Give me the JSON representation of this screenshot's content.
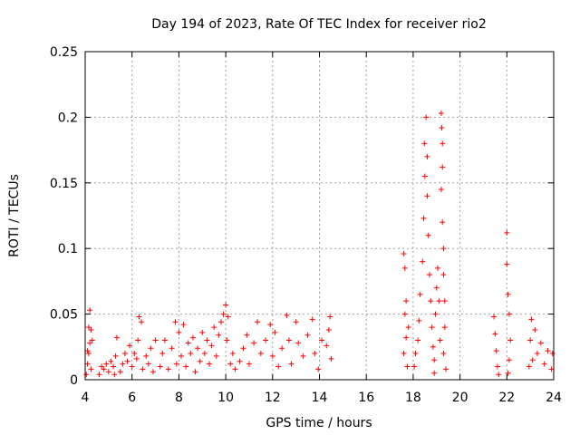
{
  "chart_data": {
    "type": "scatter",
    "title": "Day 194 of 2023, Rate Of TEC Index for receiver rio2",
    "xlabel": "GPS time / hours",
    "ylabel": "ROTI / TECUs",
    "xlim": [
      4,
      24
    ],
    "ylim": [
      0,
      0.25
    ],
    "grid": true,
    "marker": "+",
    "color": "#ff0000",
    "x_ticks": [
      "4",
      "6",
      "8",
      "10",
      "12",
      "14",
      "16",
      "18",
      "20",
      "22",
      "24"
    ],
    "y_ticks": [
      "0",
      "0.05",
      "0.1",
      "0.15",
      "0.2",
      "0.25"
    ],
    "series": [
      {
        "points": [
          [
            4.05,
            0.004
          ],
          [
            4.1,
            0.012
          ],
          [
            4.15,
            0.02
          ],
          [
            4.2,
            0.028
          ],
          [
            4.25,
            0.038
          ],
          [
            4.2,
            0.053
          ],
          [
            4.3,
            0.03
          ],
          [
            4.1,
            0.022
          ],
          [
            4.25,
            0.008
          ],
          [
            4.15,
            0.04
          ],
          [
            4.6,
            0.004
          ],
          [
            4.7,
            0.01
          ],
          [
            4.8,
            0.008
          ],
          [
            4.9,
            0.012
          ],
          [
            5.0,
            0.006
          ],
          [
            5.1,
            0.014
          ],
          [
            5.2,
            0.01
          ],
          [
            5.3,
            0.018
          ],
          [
            5.35,
            0.032
          ],
          [
            5.25,
            0.004
          ],
          [
            5.5,
            0.006
          ],
          [
            5.6,
            0.012
          ],
          [
            5.7,
            0.02
          ],
          [
            5.8,
            0.014
          ],
          [
            5.9,
            0.026
          ],
          [
            6.0,
            0.01
          ],
          [
            6.1,
            0.02
          ],
          [
            6.2,
            0.016
          ],
          [
            6.3,
            0.048
          ],
          [
            6.25,
            0.03
          ],
          [
            6.4,
            0.044
          ],
          [
            6.45,
            0.008
          ],
          [
            6.6,
            0.018
          ],
          [
            6.7,
            0.012
          ],
          [
            6.8,
            0.024
          ],
          [
            6.9,
            0.006
          ],
          [
            7.0,
            0.03
          ],
          [
            7.2,
            0.01
          ],
          [
            7.3,
            0.02
          ],
          [
            7.4,
            0.03
          ],
          [
            7.55,
            0.008
          ],
          [
            7.7,
            0.024
          ],
          [
            7.85,
            0.044
          ],
          [
            7.9,
            0.012
          ],
          [
            8.0,
            0.036
          ],
          [
            8.1,
            0.018
          ],
          [
            8.2,
            0.042
          ],
          [
            8.3,
            0.01
          ],
          [
            8.4,
            0.028
          ],
          [
            8.5,
            0.02
          ],
          [
            8.6,
            0.032
          ],
          [
            8.7,
            0.006
          ],
          [
            8.8,
            0.024
          ],
          [
            8.9,
            0.014
          ],
          [
            9.0,
            0.036
          ],
          [
            9.1,
            0.02
          ],
          [
            9.2,
            0.03
          ],
          [
            9.3,
            0.012
          ],
          [
            9.4,
            0.026
          ],
          [
            9.5,
            0.04
          ],
          [
            9.6,
            0.018
          ],
          [
            9.7,
            0.034
          ],
          [
            9.8,
            0.044
          ],
          [
            9.9,
            0.05
          ],
          [
            10.0,
            0.057
          ],
          [
            10.1,
            0.048
          ],
          [
            10.05,
            0.03
          ],
          [
            10.2,
            0.012
          ],
          [
            10.3,
            0.02
          ],
          [
            10.4,
            0.008
          ],
          [
            10.6,
            0.014
          ],
          [
            10.75,
            0.024
          ],
          [
            10.9,
            0.034
          ],
          [
            11.0,
            0.012
          ],
          [
            11.2,
            0.028
          ],
          [
            11.35,
            0.044
          ],
          [
            11.5,
            0.02
          ],
          [
            11.7,
            0.03
          ],
          [
            11.9,
            0.042
          ],
          [
            12.0,
            0.018
          ],
          [
            12.1,
            0.036
          ],
          [
            12.25,
            0.01
          ],
          [
            12.4,
            0.024
          ],
          [
            12.6,
            0.049
          ],
          [
            12.7,
            0.03
          ],
          [
            12.8,
            0.012
          ],
          [
            13.0,
            0.044
          ],
          [
            13.1,
            0.028
          ],
          [
            13.3,
            0.018
          ],
          [
            13.5,
            0.034
          ],
          [
            13.7,
            0.046
          ],
          [
            13.8,
            0.02
          ],
          [
            13.95,
            0.008
          ],
          [
            14.1,
            0.03
          ],
          [
            14.3,
            0.026
          ],
          [
            14.45,
            0.048
          ],
          [
            14.5,
            0.016
          ],
          [
            14.4,
            0.038
          ],
          [
            17.6,
            0.096
          ],
          [
            17.65,
            0.085
          ],
          [
            17.7,
            0.06
          ],
          [
            17.65,
            0.05
          ],
          [
            17.7,
            0.032
          ],
          [
            17.6,
            0.02
          ],
          [
            17.75,
            0.01
          ],
          [
            17.8,
            0.04
          ],
          [
            18.05,
            0.01
          ],
          [
            18.1,
            0.02
          ],
          [
            18.2,
            0.03
          ],
          [
            18.25,
            0.045
          ],
          [
            18.3,
            0.065
          ],
          [
            18.4,
            0.09
          ],
          [
            18.45,
            0.123
          ],
          [
            18.5,
            0.155
          ],
          [
            18.48,
            0.18
          ],
          [
            18.55,
            0.2
          ],
          [
            18.6,
            0.17
          ],
          [
            18.6,
            0.14
          ],
          [
            18.65,
            0.11
          ],
          [
            18.7,
            0.08
          ],
          [
            18.75,
            0.06
          ],
          [
            18.8,
            0.04
          ],
          [
            18.85,
            0.025
          ],
          [
            18.9,
            0.015
          ],
          [
            18.95,
            0.05
          ],
          [
            19.0,
            0.07
          ],
          [
            19.05,
            0.085
          ],
          [
            19.1,
            0.06
          ],
          [
            19.15,
            0.03
          ],
          [
            19.2,
            0.203
          ],
          [
            19.22,
            0.192
          ],
          [
            19.25,
            0.18
          ],
          [
            19.25,
            0.162
          ],
          [
            19.2,
            0.145
          ],
          [
            19.25,
            0.12
          ],
          [
            19.3,
            0.1
          ],
          [
            19.3,
            0.08
          ],
          [
            19.35,
            0.06
          ],
          [
            19.35,
            0.04
          ],
          [
            19.3,
            0.02
          ],
          [
            19.4,
            0.008
          ],
          [
            18.9,
            0.005
          ],
          [
            21.45,
            0.048
          ],
          [
            21.5,
            0.035
          ],
          [
            21.55,
            0.022
          ],
          [
            21.6,
            0.01
          ],
          [
            21.65,
            0.004
          ],
          [
            22.0,
            0.112
          ],
          [
            22.0,
            0.088
          ],
          [
            22.05,
            0.065
          ],
          [
            22.1,
            0.05
          ],
          [
            22.15,
            0.03
          ],
          [
            22.1,
            0.015
          ],
          [
            22.05,
            0.005
          ],
          [
            22.95,
            0.01
          ],
          [
            23.0,
            0.03
          ],
          [
            23.05,
            0.046
          ],
          [
            23.1,
            0.015
          ],
          [
            23.2,
            0.038
          ],
          [
            23.3,
            0.02
          ],
          [
            23.45,
            0.028
          ],
          [
            23.6,
            0.012
          ],
          [
            23.75,
            0.022
          ],
          [
            23.9,
            0.008
          ],
          [
            23.95,
            0.02
          ]
        ]
      }
    ]
  }
}
